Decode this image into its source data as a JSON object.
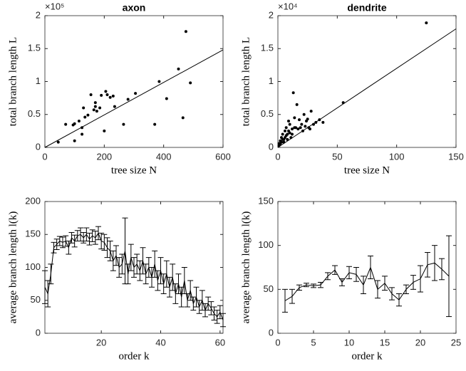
{
  "chart_data": [
    {
      "type": "scatter",
      "title": "axon",
      "x_label": "tree size N",
      "y_label": "total branch length L",
      "y_exponent_label": "×10⁵",
      "xlim": [
        0,
        600
      ],
      "xticks": [
        0,
        200,
        400,
        600
      ],
      "ylim": [
        0,
        200000
      ],
      "yticks": [
        0,
        {
          "value": 50000,
          "label": "0.5"
        },
        {
          "value": 100000,
          "label": "1"
        },
        {
          "value": 150000,
          "label": "1.5"
        },
        {
          "value": 200000,
          "label": "2"
        }
      ],
      "color": "#000000",
      "x": [
        45,
        70,
        95,
        100,
        100,
        115,
        125,
        125,
        130,
        135,
        145,
        155,
        165,
        170,
        170,
        175,
        185,
        190,
        200,
        205,
        210,
        220,
        230,
        235,
        265,
        280,
        305,
        370,
        385,
        410,
        450,
        465,
        475,
        490
      ],
      "y": [
        8000,
        35000,
        34000,
        36000,
        10000,
        40000,
        20000,
        30000,
        60000,
        46000,
        49000,
        80000,
        57000,
        68000,
        62000,
        55000,
        60000,
        79000,
        25000,
        85000,
        80000,
        76000,
        78000,
        62000,
        35000,
        73000,
        82000,
        35000,
        100000,
        74000,
        119000,
        45000,
        176000,
        98000
      ],
      "fit": {
        "x": [
          0,
          600
        ],
        "y": [
          0,
          148000
        ]
      }
    },
    {
      "type": "scatter",
      "title": "dendrite",
      "x_label": "tree size N",
      "y_label": "total branch length L",
      "y_exponent_label": "×10⁴",
      "xlim": [
        0,
        150
      ],
      "xticks": [
        0,
        50,
        100,
        150
      ],
      "ylim": [
        0,
        20000
      ],
      "yticks": [
        0,
        {
          "value": 5000,
          "label": "0.5"
        },
        {
          "value": 10000,
          "label": "1"
        },
        {
          "value": 15000,
          "label": "1.5"
        },
        {
          "value": 20000,
          "label": "2"
        }
      ],
      "color": "#000000",
      "x": [
        1,
        1,
        2,
        2,
        3,
        3,
        4,
        4,
        5,
        5,
        6,
        6,
        7,
        7,
        8,
        8,
        9,
        9,
        10,
        10,
        11,
        12,
        12,
        13,
        14,
        14,
        15,
        16,
        17,
        18,
        19,
        20,
        21,
        22,
        23,
        24,
        25,
        26,
        27,
        28,
        30,
        32,
        35,
        38,
        55,
        125
      ],
      "y": [
        300,
        600,
        500,
        1000,
        800,
        1500,
        1200,
        2000,
        1200,
        800,
        2500,
        1500,
        3000,
        1800,
        2000,
        1200,
        4000,
        2500,
        3500,
        2200,
        1500,
        2800,
        2000,
        8300,
        4500,
        3000,
        3000,
        6500,
        2800,
        4200,
        3000,
        3500,
        2500,
        5000,
        3200,
        4000,
        4300,
        3000,
        2800,
        5500,
        3500,
        3800,
        4200,
        3800,
        6800,
        18900
      ],
      "fit": {
        "x": [
          0,
          150
        ],
        "y": [
          0,
          18000
        ]
      }
    },
    {
      "type": "errorbar",
      "x_label": "order k",
      "y_label": "average branch length l(k)",
      "xlim": [
        1,
        61
      ],
      "xticks": [
        20,
        40,
        60
      ],
      "ylim": [
        0,
        200
      ],
      "yticks": [
        0,
        50,
        100,
        150,
        200
      ],
      "color": "#000000",
      "x": [
        1,
        2,
        3,
        4,
        5,
        6,
        7,
        8,
        9,
        10,
        11,
        12,
        13,
        14,
        15,
        16,
        17,
        18,
        19,
        20,
        21,
        22,
        23,
        24,
        25,
        26,
        27,
        28,
        29,
        30,
        31,
        32,
        33,
        34,
        35,
        36,
        37,
        38,
        39,
        40,
        41,
        42,
        43,
        44,
        45,
        46,
        47,
        48,
        49,
        50,
        51,
        52,
        53,
        54,
        55,
        56,
        57,
        58,
        59,
        60,
        61
      ],
      "values": [
        70,
        60,
        90,
        130,
        135,
        140,
        138,
        140,
        130,
        145,
        140,
        148,
        150,
        145,
        150,
        143,
        148,
        145,
        152,
        140,
        138,
        130,
        125,
        110,
        118,
        100,
        105,
        125,
        90,
        115,
        100,
        105,
        95,
        110,
        90,
        100,
        85,
        105,
        80,
        95,
        75,
        90,
        70,
        85,
        60,
        75,
        55,
        80,
        50,
        65,
        45,
        55,
        40,
        50,
        35,
        45,
        38,
        30,
        25,
        32,
        20
      ],
      "errors": [
        25,
        20,
        15,
        8,
        8,
        7,
        8,
        8,
        10,
        8,
        9,
        8,
        10,
        8,
        10,
        9,
        9,
        10,
        10,
        12,
        12,
        15,
        15,
        15,
        15,
        15,
        15,
        50,
        15,
        20,
        15,
        15,
        15,
        20,
        15,
        15,
        15,
        20,
        15,
        20,
        15,
        20,
        15,
        20,
        15,
        15,
        15,
        20,
        10,
        15,
        10,
        15,
        10,
        15,
        10,
        10,
        10,
        10,
        10,
        10,
        10
      ]
    },
    {
      "type": "errorbar",
      "x_label": "order k",
      "y_label": "average branch length l(k)",
      "xlim": [
        0,
        25
      ],
      "xticks": [
        0,
        5,
        10,
        15,
        20,
        25
      ],
      "ylim": [
        0,
        150
      ],
      "yticks": [
        0,
        50,
        100,
        150
      ],
      "color": "#000000",
      "x": [
        1,
        2,
        3,
        4,
        5,
        6,
        7,
        8,
        9,
        10,
        11,
        12,
        13,
        14,
        15,
        16,
        17,
        18,
        19,
        20,
        21,
        22,
        23,
        24
      ],
      "values": [
        37,
        42,
        52,
        55,
        54,
        55,
        65,
        72,
        58,
        69,
        67,
        55,
        75,
        50,
        57,
        45,
        38,
        50,
        58,
        62,
        78,
        80,
        73,
        65
      ],
      "errors": [
        13,
        8,
        3,
        2,
        2,
        3,
        4,
        5,
        4,
        7,
        8,
        10,
        13,
        10,
        8,
        7,
        7,
        5,
        8,
        15,
        14,
        20,
        12,
        46
      ]
    }
  ]
}
